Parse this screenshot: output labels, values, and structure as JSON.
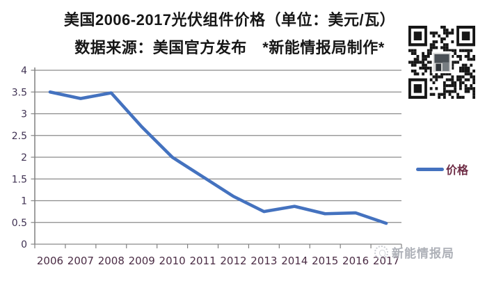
{
  "header": {
    "title": "美国2006-2017光伏组件价格（单位：美元/瓦）",
    "subtitle": "数据来源：美国官方发布　*新能情报局制作*"
  },
  "chart_data": {
    "type": "line",
    "title": "美国2006-2017光伏组件价格（单位：美元/瓦）",
    "subtitle": "数据来源：美国官方发布 *新能情报局制作*",
    "categories": [
      "2006",
      "2007",
      "2008",
      "2009",
      "2010",
      "2011",
      "2012",
      "2013",
      "2014",
      "2015",
      "2016",
      "2017"
    ],
    "series": [
      {
        "name": "价格",
        "values": [
          3.5,
          3.35,
          3.48,
          2.7,
          2.0,
          1.55,
          1.1,
          0.75,
          0.87,
          0.7,
          0.72,
          0.48
        ]
      }
    ],
    "xlabel": "",
    "ylabel": "",
    "ylim": [
      0,
      4
    ],
    "ytick_step": 0.5,
    "grid": true,
    "legend_position": "right",
    "colors": {
      "line": "#4472bf",
      "grid": "#8a8a8a",
      "axis": "#808080",
      "ytick_label": "#3f3152",
      "xtick_label": "#4b2c45",
      "legend_text": "#6e2c45"
    }
  },
  "watermark": {
    "text": "新能情报局"
  },
  "icons": {
    "qr_code": "wechat-qr-code",
    "watermark_logo": "circle-logo"
  }
}
